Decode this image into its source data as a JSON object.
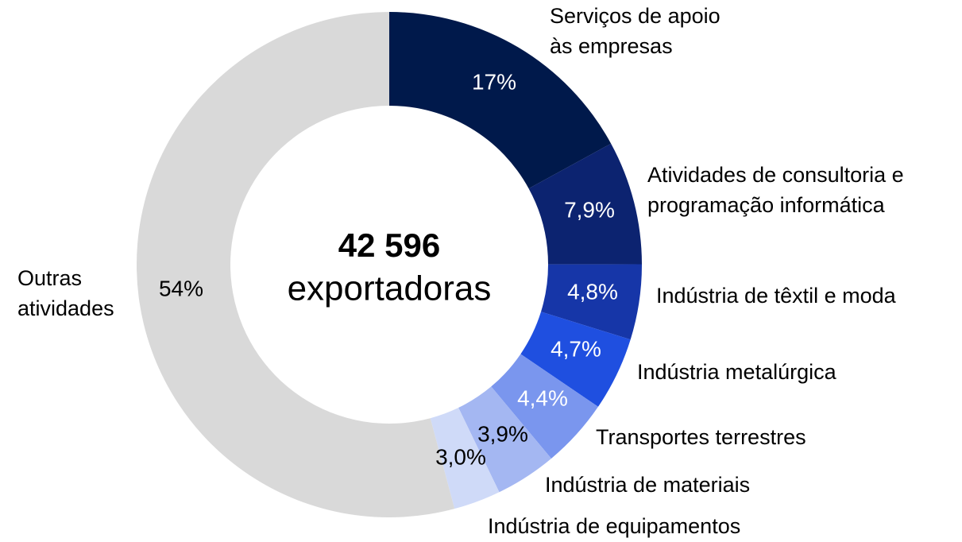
{
  "chart_data": {
    "type": "donut",
    "center_title": "42 596",
    "center_subtitle": "exportadoras",
    "categories": [
      "Serviços de apoio\nàs empresas",
      "Atividades de consultoria e\nprogramação informática",
      "Indústria de têxtil e moda",
      "Indústria metalúrgica",
      "Transportes terrestres",
      "Indústria de materiais",
      "Indústria de equipamentos",
      "Outras\natividades"
    ],
    "values": [
      17,
      7.9,
      4.8,
      4.7,
      4.4,
      3.9,
      3.0,
      54
    ],
    "value_labels": [
      "17%",
      "7,9%",
      "4,8%",
      "4,7%",
      "4,4%",
      "3,9%",
      "3,0%",
      "54%"
    ],
    "colors": [
      "#00194b",
      "#0c2370",
      "#1636a8",
      "#1f4fe0",
      "#7a96ee",
      "#a4b7f2",
      "#cfdaf8",
      "#d9d9d9"
    ]
  }
}
